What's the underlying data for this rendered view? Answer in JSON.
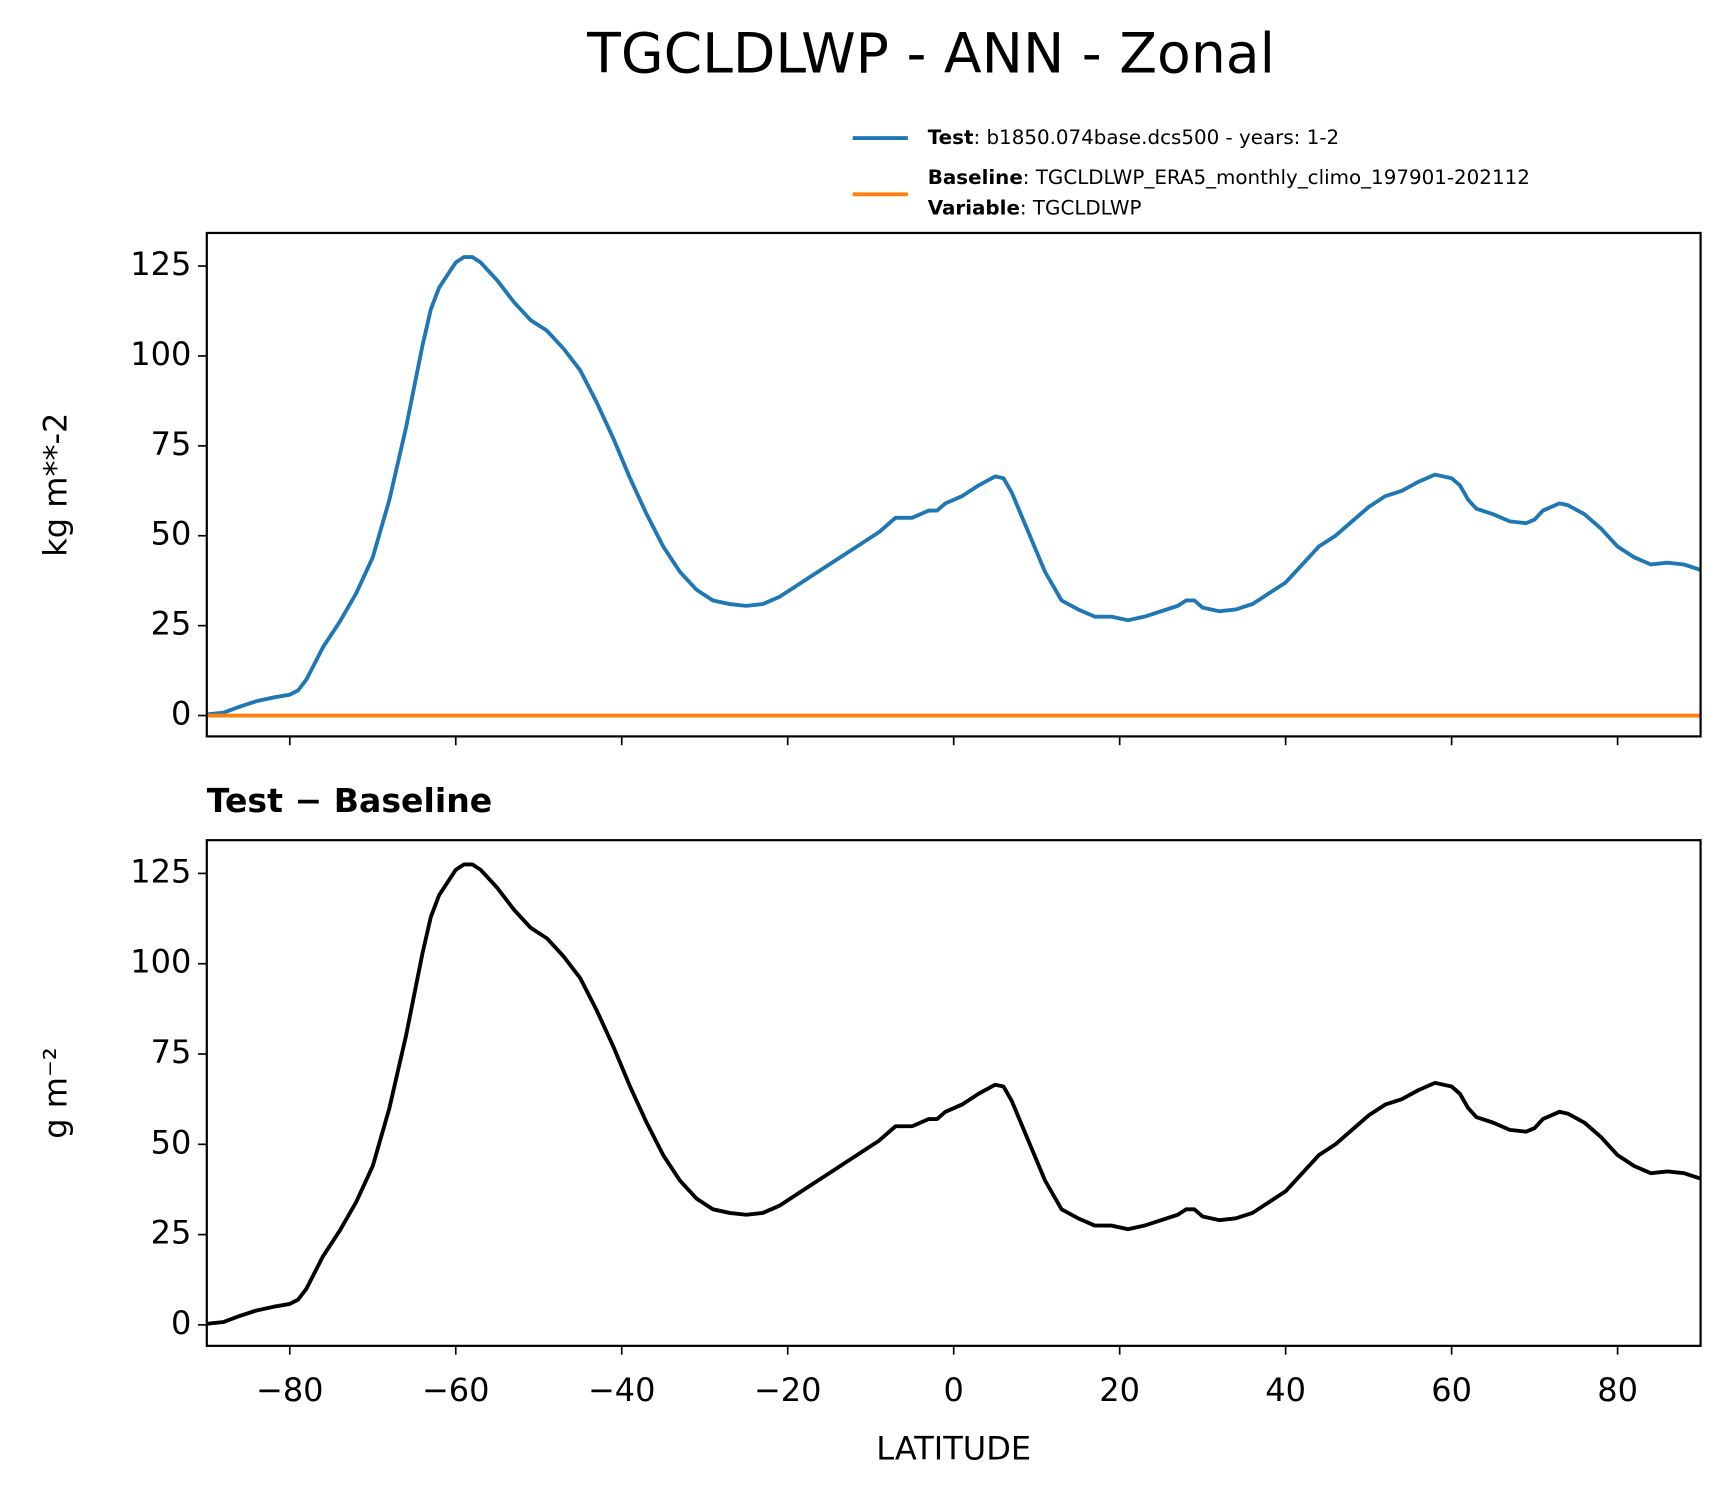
{
  "title": "TGCLDLWP - ANN - Zonal",
  "chart_data": [
    {
      "type": "line",
      "ylabel": "kg m**-2",
      "xlim": [
        -90,
        90
      ],
      "ylim": [
        -5.8,
        134.2
      ],
      "xticks": [
        -80,
        -60,
        -40,
        -20,
        0,
        20,
        40,
        60,
        80
      ],
      "yticks": [
        0,
        25,
        50,
        75,
        100,
        125
      ],
      "legend": "top-right",
      "series": [
        {
          "name": "Test",
          "label": ": b1850.074base.dcs500 - years: 1-2",
          "color": "#1f77b4",
          "x": [
            -90,
            -88,
            -86,
            -84,
            -82,
            -80,
            -79,
            -78,
            -76,
            -74,
            -72,
            -70,
            -68,
            -66,
            -64,
            -63,
            -62,
            -60,
            -59,
            -58,
            -57,
            -55,
            -53,
            -51,
            -49,
            -47,
            -45,
            -43,
            -41,
            -39,
            -37,
            -35,
            -33,
            -31,
            -29,
            -27,
            -25,
            -23,
            -21,
            -19,
            -17,
            -15,
            -13,
            -11,
            -9,
            -7,
            -5,
            -3,
            -2,
            -1,
            1,
            3,
            5,
            6,
            7,
            9,
            11,
            13,
            15,
            17,
            19,
            21,
            23,
            25,
            27,
            28,
            29,
            30,
            32,
            34,
            36,
            38,
            40,
            42,
            44,
            46,
            48,
            50,
            52,
            54,
            56,
            58,
            60,
            61,
            62,
            63,
            65,
            67,
            69,
            70,
            71,
            73,
            74,
            76,
            78,
            80,
            82,
            84,
            86,
            88,
            90
          ],
          "values": [
            0.3,
            0.8,
            2.5,
            4,
            5,
            5.8,
            7,
            10,
            19,
            26,
            34,
            44,
            60,
            80,
            103,
            113,
            119,
            126,
            127.5,
            127.5,
            126,
            121,
            115,
            110,
            107,
            102,
            96,
            87,
            77,
            66,
            56,
            47,
            40,
            35,
            32,
            31,
            30.5,
            31,
            33,
            36,
            39,
            42,
            45,
            48,
            51,
            55,
            55,
            57,
            57,
            59,
            61,
            64,
            66.5,
            66,
            62,
            51,
            40,
            32,
            29.5,
            27.5,
            27.5,
            26.5,
            27.5,
            29,
            30.5,
            32,
            32,
            30,
            29,
            29.5,
            31,
            34,
            37,
            42,
            47,
            50,
            54,
            58,
            61,
            62.5,
            65,
            67,
            66,
            64,
            60,
            57.5,
            56,
            54,
            53.5,
            54.5,
            57,
            59,
            58.5,
            56,
            52,
            47,
            44,
            42,
            42.5,
            42,
            40.5
          ]
        },
        {
          "name": "Baseline",
          "label": ": TGCLDLWP_ERA5_monthly_climo_197901-202112",
          "color": "#ff7f0e",
          "x": [
            -90,
            90
          ],
          "values": [
            0,
            0
          ]
        }
      ],
      "legend_note": {
        "name": "Variable",
        "label": ": TGCLDLWP"
      }
    },
    {
      "type": "line",
      "title": "Test − Baseline",
      "ylabel": "g m⁻²",
      "xlabel": "LATITUDE",
      "xlim": [
        -90,
        90
      ],
      "ylim": [
        -5.8,
        134.2
      ],
      "xticks": [
        {
          "value": -80,
          "label": "−80"
        },
        {
          "value": -60,
          "label": "−60"
        },
        {
          "value": -40,
          "label": "−40"
        },
        {
          "value": -20,
          "label": "−20"
        },
        0,
        20,
        40,
        60,
        80
      ],
      "yticks": [
        0,
        25,
        50,
        75,
        100,
        125
      ],
      "series": [
        {
          "color": "#000000",
          "x": [
            -90,
            -88,
            -86,
            -84,
            -82,
            -80,
            -79,
            -78,
            -76,
            -74,
            -72,
            -70,
            -68,
            -66,
            -64,
            -63,
            -62,
            -60,
            -59,
            -58,
            -57,
            -55,
            -53,
            -51,
            -49,
            -47,
            -45,
            -43,
            -41,
            -39,
            -37,
            -35,
            -33,
            -31,
            -29,
            -27,
            -25,
            -23,
            -21,
            -19,
            -17,
            -15,
            -13,
            -11,
            -9,
            -7,
            -5,
            -3,
            -2,
            -1,
            1,
            3,
            5,
            6,
            7,
            9,
            11,
            13,
            15,
            17,
            19,
            21,
            23,
            25,
            27,
            28,
            29,
            30,
            32,
            34,
            36,
            38,
            40,
            42,
            44,
            46,
            48,
            50,
            52,
            54,
            56,
            58,
            60,
            61,
            62,
            63,
            65,
            67,
            69,
            70,
            71,
            73,
            74,
            76,
            78,
            80,
            82,
            84,
            86,
            88,
            90
          ],
          "values": [
            0.3,
            0.8,
            2.5,
            4,
            5,
            5.8,
            7,
            10,
            19,
            26,
            34,
            44,
            60,
            80,
            103,
            113,
            119,
            126,
            127.5,
            127.5,
            126,
            121,
            115,
            110,
            107,
            102,
            96,
            87,
            77,
            66,
            56,
            47,
            40,
            35,
            32,
            31,
            30.5,
            31,
            33,
            36,
            39,
            42,
            45,
            48,
            51,
            55,
            55,
            57,
            57,
            59,
            61,
            64,
            66.5,
            66,
            62,
            51,
            40,
            32,
            29.5,
            27.5,
            27.5,
            26.5,
            27.5,
            29,
            30.5,
            32,
            32,
            30,
            29,
            29.5,
            31,
            34,
            37,
            42,
            47,
            50,
            54,
            58,
            61,
            62.5,
            65,
            67,
            66,
            64,
            60,
            57.5,
            56,
            54,
            53.5,
            54.5,
            57,
            59,
            58.5,
            56,
            52,
            47,
            44,
            42,
            42.5,
            42,
            40.5
          ]
        }
      ]
    }
  ]
}
